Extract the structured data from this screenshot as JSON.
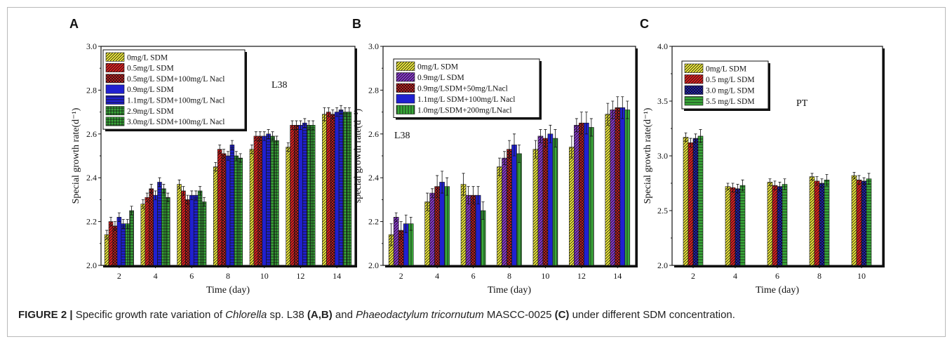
{
  "caption": {
    "label": "FIGURE 2 |",
    "t1": " Specific growth rate variation of ",
    "t2": "Chlorella",
    "t3": " sp. L38 ",
    "t4": "(A,B)",
    "t5": " and ",
    "t6": "Phaeodactylum tricornutum",
    "t7": " MASCC-0025 ",
    "t8": "(C)",
    "t9": " under different SDM concentration."
  },
  "chart_data": [
    {
      "type": "bar",
      "panel": "A",
      "annotation": "L38",
      "xlabel": "Time (day)",
      "ylabel": "Special growth rate(d⁻¹)",
      "ylim": [
        2.0,
        3.0
      ],
      "yticks": [
        "2.0",
        "2.2",
        "2.4",
        "2.6",
        "2.8",
        "3.0"
      ],
      "categories": [
        "2",
        "4",
        "6",
        "8",
        "10",
        "12",
        "14"
      ],
      "legend_position": "top-left",
      "grid": false,
      "series": [
        {
          "name": "0mg/L SDM",
          "color": "#f2ee3c",
          "pattern": "diag",
          "values": [
            2.14,
            2.28,
            2.37,
            2.45,
            2.53,
            2.54,
            2.69
          ],
          "errors": [
            0.02,
            0.02,
            0.02,
            0.02,
            0.02,
            0.02,
            0.03
          ]
        },
        {
          "name": "0.5mg/L SDM",
          "color": "#e02020",
          "pattern": "diag",
          "values": [
            2.2,
            2.31,
            2.34,
            2.53,
            2.59,
            2.64,
            2.7
          ],
          "errors": [
            0.02,
            0.02,
            0.02,
            0.02,
            0.02,
            0.02,
            0.02
          ]
        },
        {
          "name": "0.5mg/L SDM+100mg/L Nacl",
          "color": "#e02020",
          "pattern": "cross",
          "values": [
            2.18,
            2.35,
            2.3,
            2.51,
            2.59,
            2.64,
            2.69
          ],
          "errors": [
            0.02,
            0.02,
            0.02,
            0.02,
            0.02,
            0.02,
            0.02
          ]
        },
        {
          "name": "0.9mg/L SDM",
          "color": "#2020d0",
          "pattern": "none",
          "values": [
            2.22,
            2.32,
            2.32,
            2.5,
            2.59,
            2.64,
            2.7
          ],
          "errors": [
            0.02,
            0.02,
            0.02,
            0.02,
            0.02,
            0.02,
            0.02
          ]
        },
        {
          "name": "1.1mg/L SDM+100mg/L Nacl",
          "color": "#2020d0",
          "pattern": "hline",
          "values": [
            2.19,
            2.38,
            2.32,
            2.55,
            2.6,
            2.65,
            2.71
          ],
          "errors": [
            0.02,
            0.02,
            0.02,
            0.02,
            0.02,
            0.02,
            0.02
          ]
        },
        {
          "name": "2.9mg/L SDM",
          "color": "#3aaa3a",
          "pattern": "grid",
          "values": [
            2.19,
            2.35,
            2.34,
            2.5,
            2.59,
            2.64,
            2.7
          ],
          "errors": [
            0.02,
            0.02,
            0.02,
            0.02,
            0.02,
            0.02,
            0.02
          ]
        },
        {
          "name": "3.0mg/L SDM+100mg/L Nacl",
          "color": "#3aaa3a",
          "pattern": "grid",
          "values": [
            2.25,
            2.31,
            2.29,
            2.49,
            2.57,
            2.64,
            2.7
          ],
          "errors": [
            0.02,
            0.02,
            0.02,
            0.02,
            0.02,
            0.02,
            0.02
          ]
        }
      ]
    },
    {
      "type": "bar",
      "panel": "B",
      "annotation": "L38",
      "xlabel": "Time (day)",
      "ylabel": "special growth rate(d⁻¹)",
      "ylim": [
        2.0,
        3.0
      ],
      "yticks": [
        "2.0",
        "2.2",
        "2.4",
        "2.6",
        "2.8",
        "3.0"
      ],
      "categories": [
        "2",
        "4",
        "6",
        "8",
        "10",
        "12",
        "14"
      ],
      "legend_position": "top-left",
      "grid": false,
      "series": [
        {
          "name": "0mg/L SDM",
          "color": "#f2ee3c",
          "pattern": "diag",
          "values": [
            2.14,
            2.29,
            2.37,
            2.45,
            2.53,
            2.54,
            2.69
          ],
          "errors": [
            0.05,
            0.04,
            0.05,
            0.04,
            0.04,
            0.05,
            0.05
          ]
        },
        {
          "name": "0.9mg/L SDM",
          "color": "#8a3ad0",
          "pattern": "diag",
          "values": [
            2.22,
            2.33,
            2.32,
            2.49,
            2.59,
            2.64,
            2.71
          ],
          "errors": [
            0.02,
            0.02,
            0.04,
            0.03,
            0.03,
            0.03,
            0.04
          ]
        },
        {
          "name": "0.9mg/LSDM+50mg/LNacl",
          "color": "#e02020",
          "pattern": "cross",
          "values": [
            2.16,
            2.36,
            2.32,
            2.53,
            2.58,
            2.65,
            2.72
          ],
          "errors": [
            0.04,
            0.05,
            0.04,
            0.04,
            0.04,
            0.05,
            0.05
          ]
        },
        {
          "name": "1.1mg/L SDM+100mg/L Nacl",
          "color": "#2020d0",
          "pattern": "none",
          "values": [
            2.19,
            2.38,
            2.32,
            2.55,
            2.6,
            2.65,
            2.72
          ],
          "errors": [
            0.04,
            0.05,
            0.04,
            0.05,
            0.04,
            0.05,
            0.05
          ]
        },
        {
          "name": "1.0mg/LSDM+200mg/LNacl",
          "color": "#3aaa3a",
          "pattern": "vline",
          "values": [
            2.19,
            2.36,
            2.25,
            2.51,
            2.58,
            2.63,
            2.71
          ],
          "errors": [
            0.03,
            0.04,
            0.04,
            0.04,
            0.04,
            0.04,
            0.04
          ]
        }
      ]
    },
    {
      "type": "bar",
      "panel": "C",
      "annotation": "PT",
      "xlabel": "Time (day)",
      "ylabel": "Special growth rate(d⁻¹)",
      "ylim": [
        2.0,
        4.0
      ],
      "yticks": [
        "2.0",
        "2.5",
        "3.0",
        "3.5",
        "4.0"
      ],
      "categories": [
        "2",
        "4",
        "6",
        "8",
        "10"
      ],
      "legend_position": "top-left",
      "grid": false,
      "series": [
        {
          "name": "0mg/L SDM",
          "color": "#f2ee3c",
          "pattern": "diag",
          "values": [
            3.17,
            2.72,
            2.76,
            2.81,
            2.82
          ],
          "errors": [
            0.04,
            0.03,
            0.03,
            0.03,
            0.03
          ]
        },
        {
          "name": "0.5 mg/L SDM",
          "color": "#e02020",
          "pattern": "diag",
          "values": [
            3.12,
            2.71,
            2.73,
            2.77,
            2.78
          ],
          "errors": [
            0.04,
            0.04,
            0.04,
            0.04,
            0.04
          ]
        },
        {
          "name": "3.0 mg/L SDM",
          "color": "#2020d0",
          "pattern": "cross",
          "values": [
            3.16,
            2.7,
            2.72,
            2.75,
            2.77
          ],
          "errors": [
            0.04,
            0.04,
            0.04,
            0.04,
            0.03
          ]
        },
        {
          "name": "5.5 mg/L SDM",
          "color": "#3aaa3a",
          "pattern": "hline",
          "values": [
            3.18,
            2.73,
            2.74,
            2.78,
            2.79
          ],
          "errors": [
            0.06,
            0.05,
            0.05,
            0.05,
            0.05
          ]
        }
      ]
    }
  ]
}
